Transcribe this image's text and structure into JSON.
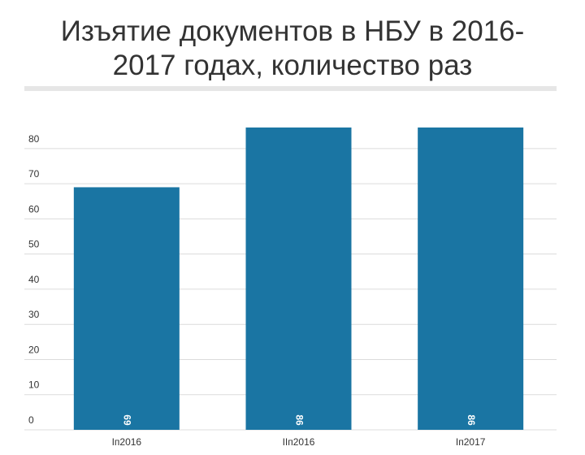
{
  "chart_data": {
    "type": "bar",
    "title": "Изъятие документов в НБУ в 2016-2017 годах, количество раз",
    "categories": [
      "Iп2016",
      "IIп2016",
      "Iп2017"
    ],
    "values": [
      69,
      86,
      86
    ],
    "color": "#1a75a3",
    "ylim": [
      0,
      90
    ],
    "yticks": [
      0,
      10,
      20,
      30,
      40,
      50,
      60,
      70,
      80
    ],
    "grid": true
  }
}
